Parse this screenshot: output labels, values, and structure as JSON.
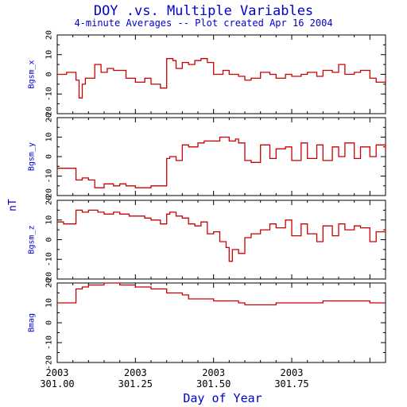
{
  "title": "DOY .vs. Multiple Variables",
  "subtitle": "4-minute Averages -- Plot created Apr 16 2004",
  "common_ylabel": "nT",
  "xlabel": "Day of Year",
  "colors": {
    "text": "#0000cc",
    "line": "#cc0000",
    "axes": "#000000"
  },
  "chart_data": [
    {
      "type": "line",
      "ylabel": "Bgsm_x",
      "xlim": [
        301.0,
        302.05
      ],
      "ylim": [
        -20,
        20
      ],
      "yticks": [
        -20,
        -10,
        0,
        10,
        20
      ],
      "x": [
        301.0,
        301.03,
        301.06,
        301.07,
        301.08,
        301.09,
        301.1,
        301.12,
        301.14,
        301.16,
        301.18,
        301.2,
        301.22,
        301.25,
        301.28,
        301.3,
        301.33,
        301.35,
        301.36,
        301.37,
        301.38,
        301.4,
        301.42,
        301.44,
        301.46,
        301.48,
        301.5,
        301.53,
        301.55,
        301.58,
        301.6,
        301.62,
        301.65,
        301.68,
        301.7,
        301.73,
        301.75,
        301.78,
        301.8,
        301.83,
        301.85,
        301.88,
        301.9,
        301.92,
        301.95,
        301.97,
        302.0,
        302.02,
        302.05
      ],
      "y": [
        0,
        1,
        -3,
        -12,
        -5,
        -2,
        -2,
        5,
        1,
        3,
        2,
        2,
        -2,
        -4,
        -2,
        -5,
        -7,
        8,
        8,
        7,
        3,
        6,
        5,
        7,
        8,
        6,
        0,
        2,
        0,
        -1,
        -3,
        -2,
        1,
        0,
        -2,
        0,
        -1,
        0,
        1,
        -1,
        2,
        1,
        5,
        0,
        1,
        2,
        -2,
        -4,
        -2
      ]
    },
    {
      "type": "line",
      "ylabel": "Bgsm_y",
      "xlim": [
        301.0,
        302.05
      ],
      "ylim": [
        -20,
        20
      ],
      "yticks": [
        -20,
        -10,
        0,
        10,
        20
      ],
      "x": [
        301.0,
        301.02,
        301.05,
        301.06,
        301.08,
        301.1,
        301.12,
        301.15,
        301.18,
        301.2,
        301.22,
        301.25,
        301.28,
        301.3,
        301.33,
        301.35,
        301.36,
        301.38,
        301.4,
        301.42,
        301.45,
        301.47,
        301.5,
        301.52,
        301.55,
        301.57,
        301.58,
        301.6,
        301.62,
        301.65,
        301.68,
        301.7,
        301.73,
        301.75,
        301.78,
        301.8,
        301.83,
        301.85,
        301.88,
        301.9,
        301.92,
        301.95,
        301.97,
        302.0,
        302.02,
        302.05
      ],
      "y": [
        -6,
        -6,
        -6,
        -12,
        -11,
        -12,
        -16,
        -14,
        -15,
        -14,
        -15,
        -16,
        -16,
        -15,
        -15,
        -1,
        0,
        -2,
        6,
        5,
        7,
        8,
        8,
        10,
        8,
        9,
        7,
        -2,
        -3,
        6,
        -1,
        4,
        5,
        -2,
        7,
        -1,
        6,
        -2,
        5,
        0,
        7,
        -1,
        5,
        0,
        6,
        3
      ]
    },
    {
      "type": "line",
      "ylabel": "Bgsm_z",
      "xlim": [
        301.0,
        302.05
      ],
      "ylim": [
        -20,
        20
      ],
      "yticks": [
        -20,
        -10,
        0,
        10,
        20
      ],
      "x": [
        301.0,
        301.02,
        301.05,
        301.06,
        301.08,
        301.1,
        301.13,
        301.15,
        301.18,
        301.2,
        301.23,
        301.25,
        301.28,
        301.3,
        301.33,
        301.35,
        301.36,
        301.38,
        301.4,
        301.42,
        301.44,
        301.46,
        301.48,
        301.5,
        301.52,
        301.54,
        301.55,
        301.56,
        301.58,
        301.6,
        301.62,
        301.65,
        301.68,
        301.7,
        301.73,
        301.75,
        301.78,
        301.8,
        301.83,
        301.85,
        301.88,
        301.9,
        301.92,
        301.95,
        301.97,
        302.0,
        302.02,
        302.05
      ],
      "y": [
        9,
        8,
        8,
        15,
        14,
        15,
        14,
        13,
        14,
        13,
        12,
        12,
        11,
        10,
        8,
        13,
        14,
        12,
        11,
        8,
        7,
        9,
        3,
        4,
        -1,
        -4,
        -11,
        -5,
        -7,
        1,
        3,
        5,
        8,
        6,
        10,
        2,
        8,
        3,
        -1,
        7,
        2,
        8,
        5,
        7,
        6,
        -1,
        4,
        6
      ]
    },
    {
      "type": "line",
      "ylabel": "Bmag",
      "xlim": [
        301.0,
        302.05
      ],
      "ylim": [
        -20,
        20
      ],
      "yticks": [
        -20,
        -10,
        0,
        10,
        20
      ],
      "x": [
        301.0,
        301.02,
        301.05,
        301.06,
        301.08,
        301.1,
        301.13,
        301.15,
        301.2,
        301.25,
        301.3,
        301.35,
        301.4,
        301.42,
        301.44,
        301.47,
        301.5,
        301.53,
        301.55,
        301.58,
        301.6,
        301.65,
        301.7,
        301.75,
        301.8,
        301.85,
        301.9,
        301.95,
        302.0,
        302.05
      ],
      "y": [
        10,
        10,
        10,
        17,
        18,
        19,
        19,
        20,
        19,
        18,
        17,
        15,
        14,
        12,
        12,
        12,
        11,
        11,
        11,
        10,
        9,
        9,
        10,
        10,
        10,
        11,
        11,
        11,
        10,
        10
      ]
    }
  ],
  "x_ticks": [
    {
      "top": "2003",
      "bottom": "301.00"
    },
    {
      "top": "2003",
      "bottom": "301.25"
    },
    {
      "top": "2003",
      "bottom": "301.50"
    },
    {
      "top": "2003",
      "bottom": "301.75"
    }
  ],
  "x_tick_values": [
    301.0,
    301.25,
    301.5,
    301.75
  ]
}
